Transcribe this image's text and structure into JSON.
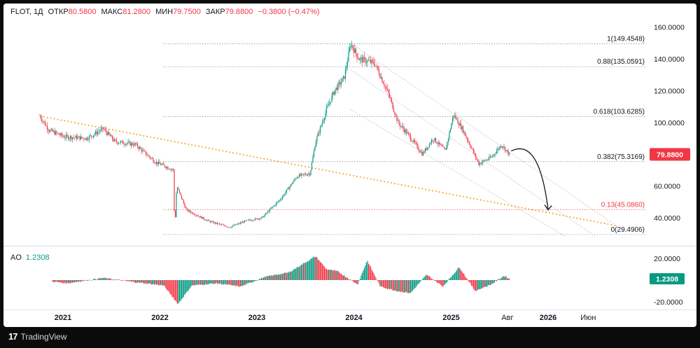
{
  "header": {
    "symbol": "FLOT, 1Д",
    "open_label": "ОТКР",
    "open": "80.5800",
    "high_label": "МАКС",
    "high": "81.2800",
    "low_label": "МИН",
    "low": "79.7500",
    "close_label": "ЗАКР",
    "close": "79.8800",
    "change": "−0.3800 (−0.47%)"
  },
  "ao_panel": {
    "label": "AO",
    "value": "1.2308"
  },
  "footer": {
    "brand": "TradingView",
    "logo_glyph": "17"
  },
  "colors": {
    "up": "#089981",
    "down": "#f23645",
    "trendline": "#f7a21b",
    "channel": "#b2b5be",
    "price_badge": "#f23645",
    "ao_badge": "#089981"
  },
  "chart_data": {
    "type": "candlestick",
    "symbol": "FLOT",
    "timeframe": "1Д",
    "ylim": [
      27,
      164
    ],
    "y_ticks": [
      "160.0000",
      "140.0000",
      "120.0000",
      "100.0000",
      "60.0000",
      "40.0000"
    ],
    "x_ticks": [
      "2021",
      "2022",
      "2023",
      "2024",
      "2025",
      "Авг",
      "2026",
      "Июн"
    ],
    "price_path": [
      {
        "date": "2020-10-06",
        "price": 104
      },
      {
        "date": "2020-11-10",
        "price": 95
      },
      {
        "date": "2021-01-05",
        "price": 91
      },
      {
        "date": "2021-04-01",
        "price": 90
      },
      {
        "date": "2021-06-01",
        "price": 96
      },
      {
        "date": "2021-07-15",
        "price": 88
      },
      {
        "date": "2021-10-01",
        "price": 86
      },
      {
        "date": "2021-12-15",
        "price": 75
      },
      {
        "date": "2022-02-22",
        "price": 70
      },
      {
        "date": "2022-02-25",
        "price": 30
      },
      {
        "date": "2022-03-05",
        "price": 60
      },
      {
        "date": "2022-04-10",
        "price": 45
      },
      {
        "date": "2022-07-01",
        "price": 38
      },
      {
        "date": "2022-09-20",
        "price": 34
      },
      {
        "date": "2022-11-20",
        "price": 38
      },
      {
        "date": "2023-01-20",
        "price": 40
      },
      {
        "date": "2023-04-01",
        "price": 52
      },
      {
        "date": "2023-06-01",
        "price": 66
      },
      {
        "date": "2023-07-20",
        "price": 68
      },
      {
        "date": "2023-08-10",
        "price": 88
      },
      {
        "date": "2023-09-20",
        "price": 108
      },
      {
        "date": "2023-10-20",
        "price": 120
      },
      {
        "date": "2023-11-25",
        "price": 128
      },
      {
        "date": "2023-12-20",
        "price": 149.45
      },
      {
        "date": "2024-01-20",
        "price": 140
      },
      {
        "date": "2024-03-20",
        "price": 137
      },
      {
        "date": "2024-05-10",
        "price": 118
      },
      {
        "date": "2024-06-15",
        "price": 100
      },
      {
        "date": "2024-07-25",
        "price": 92
      },
      {
        "date": "2024-09-15",
        "price": 80
      },
      {
        "date": "2024-10-25",
        "price": 90
      },
      {
        "date": "2024-12-10",
        "price": 82
      },
      {
        "date": "2025-01-10",
        "price": 105
      },
      {
        "date": "2025-02-15",
        "price": 95
      },
      {
        "date": "2025-04-15",
        "price": 74
      },
      {
        "date": "2025-06-01",
        "price": 78
      },
      {
        "date": "2025-07-10",
        "price": 86
      },
      {
        "date": "2025-08-08",
        "price": 79.88
      }
    ],
    "last_price": "79.8800",
    "fib_levels": [
      {
        "label": "1(149.4548)",
        "value": 149.4548
      },
      {
        "label": "0.88(135.0591)",
        "value": 135.0591
      },
      {
        "label": "0.618(103.6285)",
        "value": 103.6285
      },
      {
        "label": "0.382(75.3169)",
        "value": 75.3169
      },
      {
        "label": "0.13(45.0860)",
        "value": 45.086
      },
      {
        "label": "0(29.4906)",
        "value": 29.4906
      }
    ],
    "trendline": [
      {
        "date": "2020-10-06",
        "price": 104
      },
      {
        "date": "2026-09-15",
        "price": 35
      }
    ],
    "channel_lines": [
      [
        {
          "date": "2023-12-20",
          "price": 150
        },
        {
          "date": "2026-09-15",
          "price": 35
        }
      ],
      [
        {
          "date": "2023-12-20",
          "price": 133
        },
        {
          "date": "2026-07-01",
          "price": 28
        }
      ],
      [
        {
          "date": "2023-12-20",
          "price": 108
        },
        {
          "date": "2026-03-10",
          "price": 28
        }
      ]
    ],
    "projection_arrow": [
      {
        "date": "2025-08-15",
        "price": 82
      },
      {
        "date": "2026-01-01",
        "price": 45
      }
    ],
    "ao": {
      "ylim": [
        -28,
        30
      ],
      "y_ticks": [
        "20.0000",
        "-20.0000"
      ],
      "value": "1.2308",
      "path": [
        {
          "date": "2020-10-06",
          "ao": 0
        },
        {
          "date": "2021-01-15",
          "ao": -3
        },
        {
          "date": "2021-06-01",
          "ao": 2
        },
        {
          "date": "2021-10-01",
          "ao": -2
        },
        {
          "date": "2022-01-15",
          "ao": -5
        },
        {
          "date": "2022-03-10",
          "ao": -22
        },
        {
          "date": "2022-05-01",
          "ao": -5
        },
        {
          "date": "2022-08-01",
          "ao": -3
        },
        {
          "date": "2022-11-01",
          "ao": -6
        },
        {
          "date": "2023-02-01",
          "ao": 3
        },
        {
          "date": "2023-05-01",
          "ao": 7
        },
        {
          "date": "2023-08-10",
          "ao": 22
        },
        {
          "date": "2023-09-20",
          "ao": 10
        },
        {
          "date": "2023-11-01",
          "ao": 8
        },
        {
          "date": "2024-01-15",
          "ao": -4
        },
        {
          "date": "2024-02-20",
          "ao": 18
        },
        {
          "date": "2024-04-10",
          "ao": -6
        },
        {
          "date": "2024-06-10",
          "ao": -10
        },
        {
          "date": "2024-08-01",
          "ao": -12
        },
        {
          "date": "2024-10-01",
          "ao": 5
        },
        {
          "date": "2024-12-01",
          "ao": -6
        },
        {
          "date": "2025-02-01",
          "ao": 12
        },
        {
          "date": "2025-04-01",
          "ao": -10
        },
        {
          "date": "2025-06-01",
          "ao": -4
        },
        {
          "date": "2025-07-20",
          "ao": 4
        },
        {
          "date": "2025-08-08",
          "ao": 1.23
        }
      ]
    }
  }
}
